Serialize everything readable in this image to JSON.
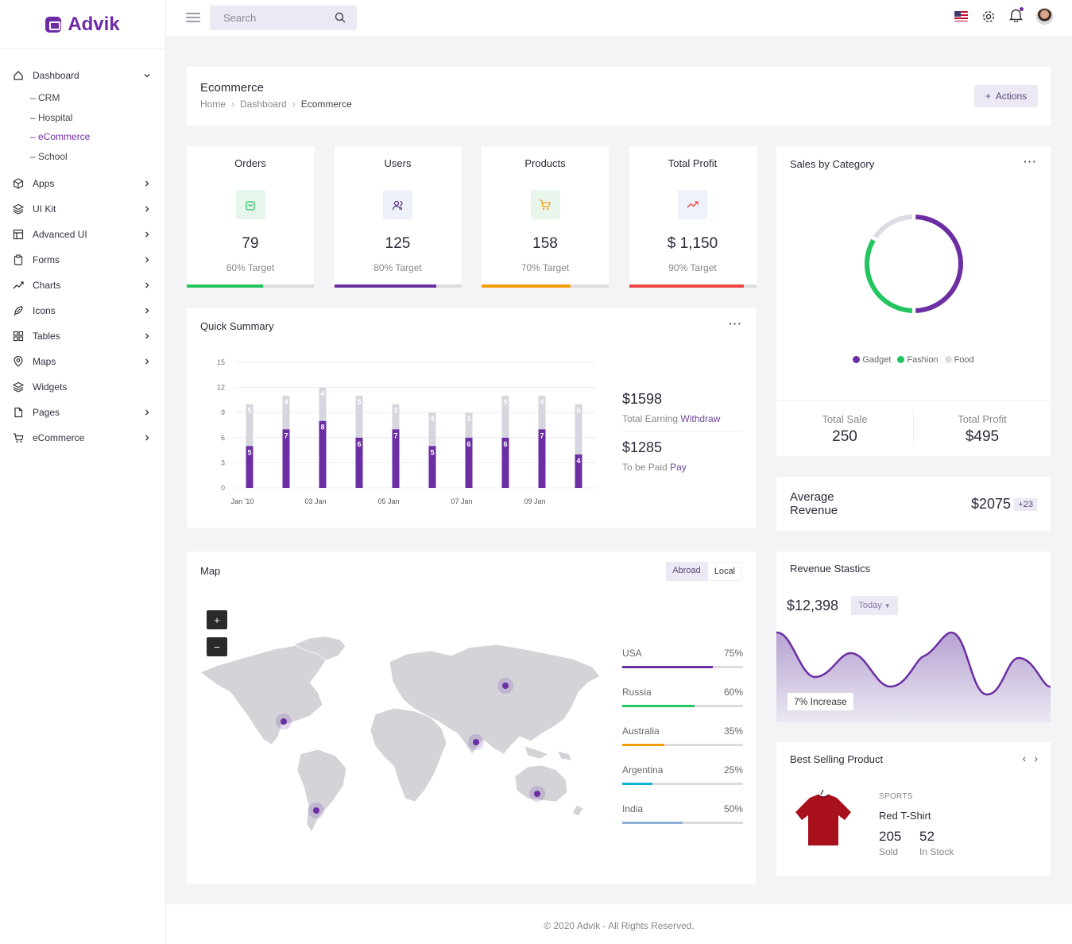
{
  "app": {
    "name": "Advik"
  },
  "sidebar": {
    "items": [
      {
        "label": "Dashboard",
        "icon": "home-icon",
        "expanded": true
      },
      {
        "label": "Apps",
        "icon": "cube-icon"
      },
      {
        "label": "UI Kit",
        "icon": "layers-icon"
      },
      {
        "label": "Advanced UI",
        "icon": "layout-icon"
      },
      {
        "label": "Forms",
        "icon": "clipboard-icon"
      },
      {
        "label": "Charts",
        "icon": "trending-icon"
      },
      {
        "label": "Icons",
        "icon": "feather-icon"
      },
      {
        "label": "Tables",
        "icon": "grid-icon"
      },
      {
        "label": "Maps",
        "icon": "map-pin-icon"
      },
      {
        "label": "Widgets",
        "icon": "layers-icon"
      },
      {
        "label": "Pages",
        "icon": "file-icon"
      },
      {
        "label": "eCommerce",
        "icon": "cart-icon"
      }
    ],
    "dashboard_sub": [
      "– CRM",
      "– Hospital",
      "– eCommerce",
      "– School"
    ]
  },
  "topbar": {
    "search_placeholder": "Search"
  },
  "page": {
    "title": "Ecommerce",
    "breadcrumb": [
      "Home",
      "Dashboard",
      "Ecommerce"
    ],
    "actions_label": "Actions",
    "actions_icon": "+"
  },
  "stats": [
    {
      "title": "Orders",
      "value": "79",
      "target": "60% Target",
      "progress": 0.6,
      "color": "#22c55e",
      "icon": "bag-icon",
      "icon_bg": "#e6f6ec"
    },
    {
      "title": "Users",
      "value": "125",
      "target": "80% Target",
      "progress": 0.8,
      "color": "#6b2ea3",
      "icon": "users-icon",
      "icon_bg": "#eef0fa"
    },
    {
      "title": "Products",
      "value": "158",
      "target": "70% Target",
      "progress": 0.7,
      "color": "#f59e0b",
      "icon": "cart-icon",
      "icon_bg": "#e8f6ec"
    },
    {
      "title": "Total Profit",
      "value": "$ 1,150",
      "target": "90% Target",
      "progress": 0.9,
      "color": "#ef4444",
      "icon": "trend-icon",
      "icon_bg": "#eef2fa"
    }
  ],
  "sales_category": {
    "title": "Sales by Category",
    "legend": [
      {
        "name": "Gadget",
        "color": "#6b2ea3"
      },
      {
        "name": "Fashion",
        "color": "#22c55e"
      },
      {
        "name": "Food",
        "color": "#dcdce2"
      }
    ],
    "total_sale_label": "Total Sale",
    "total_sale": "250",
    "total_profit_label": "Total Profit",
    "total_profit": "$495"
  },
  "average_revenue": {
    "label": "Average Revenue",
    "value": "$2075",
    "badge": "+23"
  },
  "quick_summary": {
    "title": "Quick Summary",
    "amount1": "$1598",
    "label1_a": "Total Earning",
    "label1_b": "Withdraw",
    "amount2": "$1285",
    "label2_a": "To be Paid",
    "label2_b": "Pay"
  },
  "chart_data": {
    "type": "bar",
    "stacked": true,
    "categories": [
      "Jan '10",
      "",
      "03 Jan",
      "",
      "05 Jan",
      "",
      "07 Jan",
      "",
      "09 Jan",
      ""
    ],
    "x_tick_labels": [
      "Jan '10",
      "03 Jan",
      "05 Jan",
      "07 Jan",
      "09 Jan"
    ],
    "series": [
      {
        "values": [
          5,
          7,
          8,
          6,
          7,
          5,
          6,
          6,
          7,
          4
        ],
        "color": "#6b2ea3"
      },
      {
        "values": [
          5,
          4,
          4,
          5,
          3,
          4,
          3,
          5,
          4,
          6
        ],
        "color": "#d6d6de"
      }
    ],
    "ylim": [
      0,
      15
    ],
    "yticks": [
      "0",
      "3",
      "6",
      "9",
      "12",
      "15"
    ],
    "grid": true
  },
  "map": {
    "title": "Map",
    "tab_abroad": "Abroad",
    "tab_local": "Local",
    "zoom_in": "+",
    "zoom_out": "−",
    "countries": [
      {
        "name": "USA",
        "pct": "75%",
        "value": 0.75,
        "color": "#6b2ea3"
      },
      {
        "name": "Russia",
        "pct": "60%",
        "value": 0.6,
        "color": "#22c55e"
      },
      {
        "name": "Australia",
        "pct": "35%",
        "value": 0.35,
        "color": "#f59e0b"
      },
      {
        "name": "Argentina",
        "pct": "25%",
        "value": 0.25,
        "color": "#06b6d4"
      },
      {
        "name": "India",
        "pct": "50%",
        "value": 0.5,
        "color": "#8fb0d4"
      }
    ]
  },
  "revenue": {
    "title": "Revenue Stastics",
    "value": "$12,398",
    "period": "Today",
    "increase": "7% Increase"
  },
  "best_selling": {
    "title": "Best Selling Product",
    "category": "SPORTS",
    "name": "Red T-Shirt",
    "sold": "205",
    "sold_label": "Sold",
    "stock": "52",
    "stock_label": "In Stock"
  },
  "footer": "© 2020 Advik - All Rights Reserved."
}
